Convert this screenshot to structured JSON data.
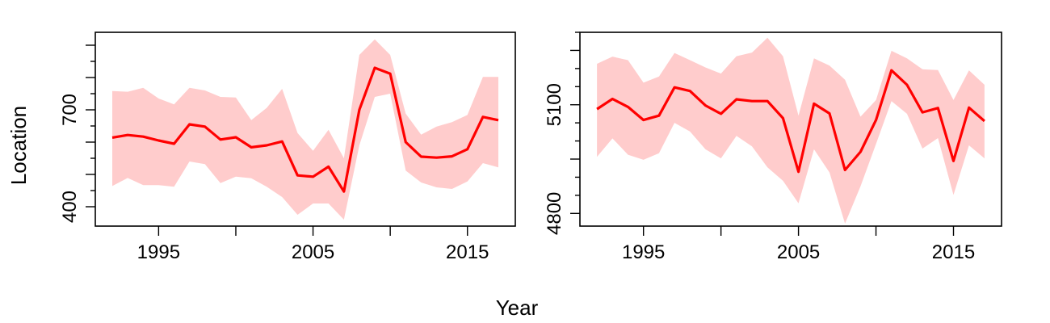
{
  "colors": {
    "line": "#ff0000",
    "band": "#ffcccc",
    "frame": "#000000"
  },
  "labels": {
    "xlabel": "Year",
    "ylabel": "Location"
  },
  "chart_data": [
    {
      "type": "line",
      "panel": "left",
      "xlim": [
        1990.9,
        2018.1
      ],
      "ylim": [
        340,
        940
      ],
      "x_ticks": [
        1995,
        2000,
        2005,
        2010,
        2015
      ],
      "x_tick_labels": [
        "1995",
        "",
        "2005",
        "",
        "2015"
      ],
      "y_ticks": [
        400,
        500,
        600,
        700,
        800,
        900
      ],
      "y_tick_labels": [
        "400",
        "",
        "",
        "700",
        "",
        ""
      ],
      "y_minor_ticks": [
        450,
        550,
        650,
        750,
        850
      ],
      "grid": false,
      "x": [
        1992,
        1993,
        1994,
        1995,
        1996,
        1997,
        1998,
        1999,
        2000,
        2001,
        2002,
        2003,
        2004,
        2005,
        2006,
        2007,
        2008,
        2009,
        2010,
        2011,
        2012,
        2013,
        2014,
        2015,
        2016,
        2017
      ],
      "mean": [
        614,
        622,
        617,
        605,
        595,
        655,
        648,
        608,
        615,
        584,
        590,
        602,
        497,
        493,
        524,
        447,
        700,
        830,
        812,
        600,
        555,
        552,
        556,
        578,
        678,
        668
      ],
      "upper": [
        758,
        756,
        768,
        735,
        717,
        768,
        760,
        740,
        738,
        668,
        706,
        765,
        628,
        573,
        638,
        550,
        870,
        918,
        870,
        688,
        623,
        648,
        662,
        684,
        802,
        802
      ],
      "lower": [
        464,
        489,
        467,
        467,
        462,
        540,
        532,
        473,
        493,
        488,
        462,
        430,
        375,
        410,
        410,
        360,
        590,
        740,
        750,
        512,
        475,
        460,
        455,
        478,
        535,
        522
      ]
    },
    {
      "type": "line",
      "panel": "right",
      "xlim": [
        1990.9,
        2018.1
      ],
      "ylim": [
        4765,
        5300
      ],
      "x_ticks": [
        1995,
        2000,
        2005,
        2010,
        2015
      ],
      "x_tick_labels": [
        "1995",
        "",
        "2005",
        "",
        "2015"
      ],
      "y_ticks": [
        4800,
        4950,
        5100,
        5250
      ],
      "y_tick_labels": [
        "4800",
        "",
        "5100",
        ""
      ],
      "y_minor_ticks": [
        4850,
        4900,
        5000,
        5050,
        5150,
        5200,
        5300
      ],
      "grid": false,
      "x": [
        1992,
        1993,
        1994,
        1995,
        1996,
        1997,
        1998,
        1999,
        2000,
        2001,
        2002,
        2003,
        2004,
        2005,
        2006,
        2007,
        2008,
        2009,
        2010,
        2011,
        2012,
        2013,
        2014,
        2015,
        2016,
        2017
      ],
      "mean": [
        5088,
        5116,
        5094,
        5058,
        5070,
        5148,
        5138,
        5098,
        5075,
        5115,
        5110,
        5110,
        5063,
        4915,
        5103,
        5076,
        4920,
        4970,
        5058,
        5195,
        5155,
        5079,
        5091,
        4945,
        5092,
        5055
      ],
      "upper": [
        5213,
        5233,
        5223,
        5161,
        5178,
        5243,
        5223,
        5203,
        5186,
        5234,
        5244,
        5285,
        5234,
        5070,
        5228,
        5208,
        5169,
        5067,
        5113,
        5249,
        5228,
        5198,
        5196,
        5113,
        5195,
        5155
      ],
      "lower": [
        4956,
        5007,
        4962,
        4948,
        4966,
        5050,
        5026,
        4977,
        4952,
        5014,
        4985,
        4927,
        4890,
        4828,
        4977,
        4913,
        4772,
        4875,
        4992,
        5110,
        5075,
        4979,
        5008,
        4851,
        4988,
        4952
      ]
    }
  ]
}
